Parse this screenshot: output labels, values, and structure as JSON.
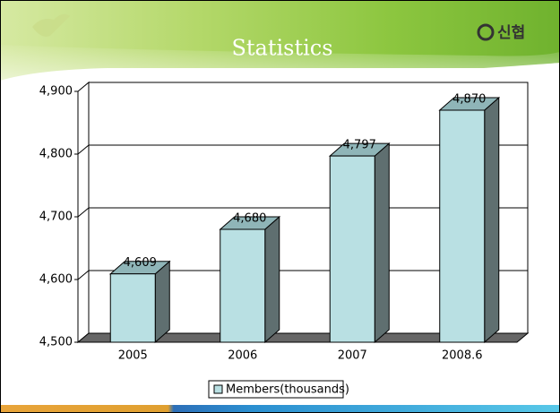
{
  "logo": "신협",
  "chart_data": {
    "type": "bar",
    "title": "Statistics",
    "categories": [
      "2005",
      "2006",
      "2007",
      "2008.6"
    ],
    "series": [
      {
        "name": "Members(thousands)",
        "color": "#b9e0e3",
        "values": [
          4609,
          4680,
          4797,
          4870
        ],
        "value_labels": [
          "4,609",
          "4,680",
          "4,797",
          "4,870"
        ]
      }
    ],
    "ylim": [
      4500,
      4900
    ],
    "yticks": [
      {
        "value": 4500,
        "label": "4,500"
      },
      {
        "value": 4600,
        "label": "4,600"
      },
      {
        "value": 4700,
        "label": "4,700"
      },
      {
        "value": 4800,
        "label": "4,800"
      },
      {
        "value": 4900,
        "label": "4,900"
      }
    ],
    "grid": true,
    "legend": "bottom"
  }
}
